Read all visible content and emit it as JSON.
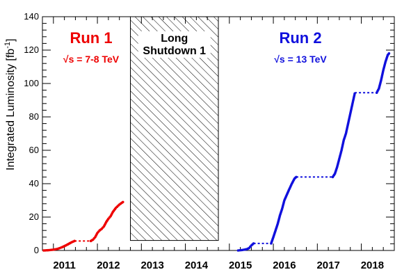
{
  "chart_data": {
    "type": "line",
    "ylabel": "Integrated Luminosity [fb",
    "ylabel_sup": "-1",
    "ylabel_close": "]",
    "ylim": [
      0,
      140
    ],
    "yticks": [
      "0",
      "20",
      "40",
      "60",
      "80",
      "100",
      "120",
      "140"
    ],
    "xlim": [
      2010.75,
      2018.75
    ],
    "xticks": [
      {
        "label": "2011",
        "value": 2011.25
      },
      {
        "label": "2012",
        "value": 2012.25
      },
      {
        "label": "2013",
        "value": 2013.25
      },
      {
        "label": "2014",
        "value": 2014.25
      },
      {
        "label": "2015",
        "value": 2015.25
      },
      {
        "label": "2016",
        "value": 2016.25
      },
      {
        "label": "2017",
        "value": 2017.25
      },
      {
        "label": "2018",
        "value": 2018.25
      }
    ],
    "shutdown": {
      "label_line1": "Long",
      "label_line2": "Shutdown 1",
      "x_range": [
        2012.75,
        2014.75
      ],
      "y_range": [
        6,
        140
      ]
    },
    "runs": [
      {
        "title": "Run 1",
        "energy": "= 7-8 TeV",
        "sqrt_symbol": "√s",
        "color": "#ee0000"
      },
      {
        "title": "Run 2",
        "energy": "= 13 TeV",
        "sqrt_symbol": "√s",
        "color": "#1010dd"
      }
    ],
    "series": [
      {
        "color": "#ee0000",
        "points": [
          [
            2010.78,
            0.0
          ],
          [
            2010.9,
            0.2
          ],
          [
            2011.0,
            0.5
          ],
          [
            2011.1,
            1.0
          ],
          [
            2011.2,
            2.0
          ],
          [
            2011.28,
            3.0
          ],
          [
            2011.35,
            4.0
          ],
          [
            2011.42,
            5.0
          ],
          [
            2011.48,
            5.7
          ]
        ],
        "plateau": [
          [
            2011.48,
            5.7
          ],
          [
            2011.85,
            5.7
          ]
        ],
        "points2": [
          [
            2011.85,
            5.7
          ],
          [
            2011.9,
            6.5
          ],
          [
            2011.95,
            8.0
          ],
          [
            2012.0,
            10.5
          ],
          [
            2012.05,
            12.0
          ],
          [
            2012.1,
            13.0
          ],
          [
            2012.15,
            14.5
          ],
          [
            2012.2,
            17.0
          ],
          [
            2012.25,
            19.0
          ],
          [
            2012.3,
            20.5
          ],
          [
            2012.35,
            23.0
          ],
          [
            2012.42,
            25.5
          ],
          [
            2012.5,
            27.5
          ],
          [
            2012.58,
            29.0
          ]
        ]
      },
      {
        "color": "#1010dd",
        "points": [
          [
            2015.2,
            0.0
          ],
          [
            2015.3,
            0.3
          ],
          [
            2015.4,
            0.8
          ],
          [
            2015.45,
            1.5
          ],
          [
            2015.5,
            3.0
          ],
          [
            2015.55,
            4.2
          ]
        ],
        "plateau": [
          [
            2015.55,
            4.2
          ],
          [
            2015.95,
            4.2
          ]
        ],
        "points2": [
          [
            2015.95,
            4.2
          ],
          [
            2016.0,
            8.0
          ],
          [
            2016.05,
            12.0
          ],
          [
            2016.1,
            16.0
          ],
          [
            2016.15,
            21.0
          ],
          [
            2016.2,
            25.0
          ],
          [
            2016.25,
            30.0
          ],
          [
            2016.3,
            33.0
          ],
          [
            2016.35,
            36.0
          ],
          [
            2016.42,
            40.0
          ],
          [
            2016.48,
            43.0
          ],
          [
            2016.52,
            44.0
          ]
        ],
        "plateau2": [
          [
            2016.52,
            44.0
          ],
          [
            2017.35,
            44.0
          ]
        ],
        "points3": [
          [
            2017.35,
            44.0
          ],
          [
            2017.4,
            46.0
          ],
          [
            2017.45,
            50.0
          ],
          [
            2017.5,
            55.0
          ],
          [
            2017.55,
            60.0
          ],
          [
            2017.6,
            66.0
          ],
          [
            2017.65,
            70.0
          ],
          [
            2017.7,
            76.0
          ],
          [
            2017.75,
            82.0
          ],
          [
            2017.8,
            88.0
          ],
          [
            2017.85,
            94.0
          ]
        ],
        "plateau3": [
          [
            2017.85,
            94.5
          ],
          [
            2018.35,
            94.5
          ]
        ],
        "points4": [
          [
            2018.35,
            94.5
          ],
          [
            2018.4,
            97.0
          ],
          [
            2018.45,
            102.0
          ],
          [
            2018.5,
            108.0
          ],
          [
            2018.55,
            113.0
          ],
          [
            2018.6,
            117.0
          ],
          [
            2018.63,
            118.0
          ]
        ]
      }
    ]
  }
}
